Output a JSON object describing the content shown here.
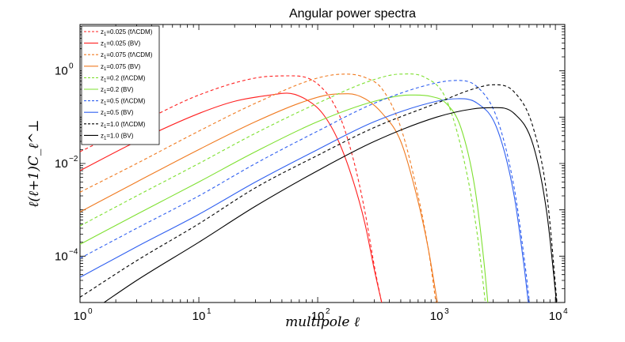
{
  "chart_data": {
    "type": "line",
    "title": "Angular power spectra",
    "xlabel": "multipole ℓ",
    "ylabel": "ℓ(ℓ+1)C_ℓ^⊥",
    "xscale": "log",
    "yscale": "log",
    "xlim": [
      1,
      12000
    ],
    "ylim": [
      1e-05,
      10
    ],
    "x_ticks": [
      {
        "value": 1,
        "label": "10",
        "exp": "0"
      },
      {
        "value": 10,
        "label": "10",
        "exp": "1"
      },
      {
        "value": 100,
        "label": "10",
        "exp": "2"
      },
      {
        "value": 1000,
        "label": "10",
        "exp": "3"
      },
      {
        "value": 10000,
        "label": "10",
        "exp": "4"
      }
    ],
    "y_ticks": [
      {
        "value": 0.0001,
        "label": "10",
        "exp": "−4"
      },
      {
        "value": 0.01,
        "label": "10",
        "exp": "−2"
      },
      {
        "value": 1,
        "label": "10",
        "exp": "0"
      }
    ],
    "legend_position": "top-left",
    "series": [
      {
        "name": "z₁=0.025 (fΛCDM)",
        "sub": "1",
        "z": "0.025",
        "model": "(fΛCDM)",
        "color": "#ff2020",
        "dash": true,
        "x": [
          1,
          3,
          10,
          30,
          60,
          100,
          150,
          200,
          250,
          300,
          340,
          360
        ],
        "y": [
          0.018,
          0.07,
          0.3,
          0.7,
          0.78,
          0.52,
          0.12,
          0.012,
          0.0009,
          6e-05,
          1.2e-05,
          6e-06
        ]
      },
      {
        "name": "z₁=0.025 (BV)",
        "sub": "1",
        "z": "0.025",
        "model": "(BV)",
        "color": "#ff2020",
        "dash": false,
        "x": [
          1,
          3,
          10,
          20,
          40,
          55,
          80,
          110,
          150,
          200,
          250,
          300,
          340,
          370
        ],
        "y": [
          0.007,
          0.03,
          0.12,
          0.22,
          0.3,
          0.33,
          0.24,
          0.12,
          0.03,
          0.004,
          0.0005,
          5e-05,
          1.2e-05,
          5e-06
        ]
      },
      {
        "name": "z₁=0.075 (fΛCDM)",
        "sub": "1",
        "z": "0.075",
        "model": "(fΛCDM)",
        "color": "#f07a20",
        "dash": true,
        "x": [
          1,
          3,
          10,
          30,
          100,
          170,
          250,
          350,
          500,
          700,
          850,
          1000
        ],
        "y": [
          0.0024,
          0.01,
          0.05,
          0.2,
          0.7,
          0.85,
          0.72,
          0.4,
          0.06,
          0.002,
          0.00015,
          8e-06
        ]
      },
      {
        "name": "z₁=0.075 (BV)",
        "sub": "1",
        "z": "0.075",
        "model": "(BV)",
        "color": "#f07a20",
        "dash": false,
        "x": [
          1,
          3,
          10,
          30,
          70,
          120,
          180,
          250,
          350,
          500,
          700,
          850,
          1050
        ],
        "y": [
          0.0009,
          0.004,
          0.02,
          0.08,
          0.2,
          0.3,
          0.32,
          0.25,
          0.12,
          0.03,
          0.0015,
          0.00015,
          6e-06
        ]
      },
      {
        "name": "z₁=0.2 (fΛCDM)",
        "sub": "1",
        "z": "0.2",
        "model": "(fΛCDM)",
        "color": "#7ee030",
        "dash": true,
        "x": [
          1,
          3,
          10,
          30,
          100,
          300,
          500,
          800,
          1200,
          1700,
          2200,
          2600
        ],
        "y": [
          0.00045,
          0.002,
          0.01,
          0.045,
          0.2,
          0.65,
          0.85,
          0.72,
          0.25,
          0.012,
          0.0003,
          8e-06
        ]
      },
      {
        "name": "z₁=0.2 (BV)",
        "sub": "1",
        "z": "0.2",
        "model": "(BV)",
        "color": "#7ee030",
        "dash": false,
        "x": [
          1,
          3,
          10,
          30,
          100,
          300,
          600,
          900,
          1200,
          1600,
          2100,
          2500,
          2750
        ],
        "y": [
          0.00018,
          0.0008,
          0.004,
          0.018,
          0.08,
          0.22,
          0.3,
          0.28,
          0.2,
          0.06,
          0.003,
          8e-05,
          6e-06
        ]
      },
      {
        "name": "z₁=0.5 (fΛCDM)",
        "sub": "1",
        "z": "0.5",
        "model": "(fΛCDM)",
        "color": "#3060f0",
        "dash": true,
        "x": [
          1,
          3,
          10,
          30,
          100,
          300,
          1000,
          1500,
          2200,
          3200,
          4500,
          5500,
          6200
        ],
        "y": [
          9e-05,
          0.0004,
          0.002,
          0.01,
          0.05,
          0.2,
          0.55,
          0.62,
          0.45,
          0.1,
          0.003,
          8e-05,
          6e-06
        ]
      },
      {
        "name": "z₁=0.5 (BV)",
        "sub": "1",
        "z": "0.5",
        "model": "(BV)",
        "color": "#3060f0",
        "dash": false,
        "x": [
          1,
          3,
          10,
          30,
          100,
          300,
          1000,
          1500,
          2200,
          3200,
          4500,
          5500,
          6100
        ],
        "y": [
          3.5e-05,
          0.00016,
          0.0008,
          0.004,
          0.02,
          0.08,
          0.22,
          0.25,
          0.2,
          0.06,
          0.002,
          5e-05,
          5e-06
        ]
      },
      {
        "name": "z₁=1.0 (fΛCDM)",
        "sub": "1",
        "z": "1.0",
        "model": "(fΛCDM)",
        "color": "#000000",
        "dash": true,
        "x": [
          1,
          3,
          10,
          30,
          100,
          300,
          1000,
          2000,
          3000,
          4500,
          6500,
          8500,
          10500
        ],
        "y": [
          1.3e-05,
          8e-05,
          0.0005,
          0.003,
          0.015,
          0.06,
          0.2,
          0.4,
          0.5,
          0.35,
          0.06,
          0.002,
          6e-06
        ]
      },
      {
        "name": "z₁=1.0 (BV)",
        "sub": "1",
        "z": "1.0",
        "model": "(BV)",
        "color": "#000000",
        "dash": false,
        "x": [
          1.5,
          3,
          10,
          30,
          100,
          300,
          1000,
          2000,
          3000,
          4500,
          6500,
          8500,
          10500
        ],
        "y": [
          9e-06,
          3e-05,
          0.0002,
          0.0012,
          0.007,
          0.03,
          0.1,
          0.15,
          0.16,
          0.12,
          0.025,
          0.0008,
          5e-06
        ]
      }
    ]
  }
}
